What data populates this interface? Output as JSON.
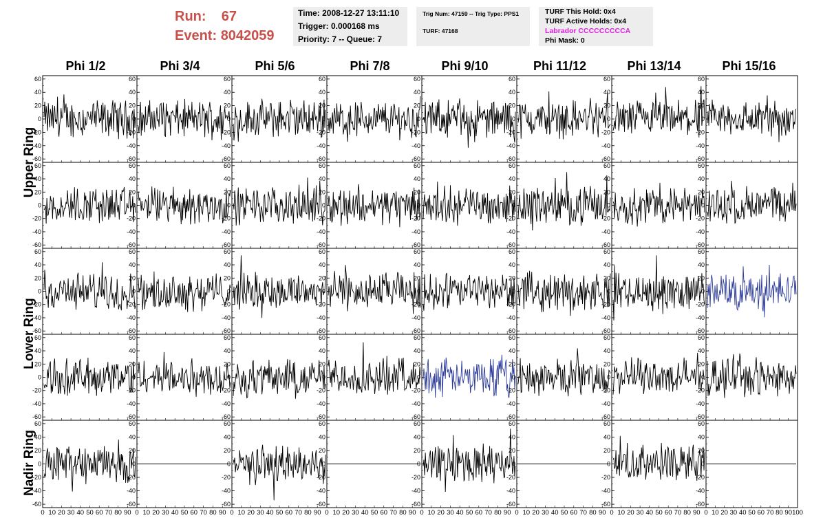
{
  "header": {
    "run_label": "Run:",
    "run_value": "67",
    "event_label": "Event:",
    "event_value": "8042059",
    "time": "Time: 2008-12-27 13:11:10",
    "trigger": "Trigger: 0.000168 ms",
    "priority": "Priority: 7 -- Queue: 7",
    "trig_num": "Trig Num: 47159 -- Trig Type: PPS1",
    "turf": "TURF: 47168",
    "turf_this_hold": "TURF This Hold: 0x4",
    "turf_active_holds": "TURF Active Holds: 0x4",
    "labrador": "Labrador CCCCCCCCCA",
    "phi_mask": "Phi Mask: 0"
  },
  "columns": [
    "Phi 1/2",
    "Phi 3/4",
    "Phi 5/6",
    "Phi 7/8",
    "Phi 9/10",
    "Phi 11/12",
    "Phi 13/14",
    "Phi 15/16"
  ],
  "rings": [
    "Upper Ring",
    "Lower Ring",
    "Nadir Ring"
  ],
  "colors": {
    "header_red": "#c8504a",
    "magenta": "#e020e0",
    "trace": "#000000",
    "highlight_trace": "#2b3a9a"
  },
  "chart_data": {
    "type": "line",
    "grid_rows": 5,
    "grid_cols": 8,
    "x_range": [
      0,
      100
    ],
    "y_range": [
      -65,
      65
    ],
    "y_ticks": [
      60,
      40,
      20,
      0,
      -20,
      -40,
      -60
    ],
    "x_tick_labels": [
      "0",
      "10",
      "20",
      "30",
      "40",
      "50",
      "60",
      "70",
      "80",
      "90",
      "100"
    ],
    "highlighted_panels": [
      [
        2,
        7
      ],
      [
        3,
        4
      ]
    ],
    "flat_panels": [
      [
        4,
        1
      ],
      [
        4,
        3
      ],
      [
        4,
        5
      ],
      [
        4,
        7
      ]
    ],
    "note_traces": "noise-like waveforms of amplitude about +/-20 to +/-40"
  }
}
